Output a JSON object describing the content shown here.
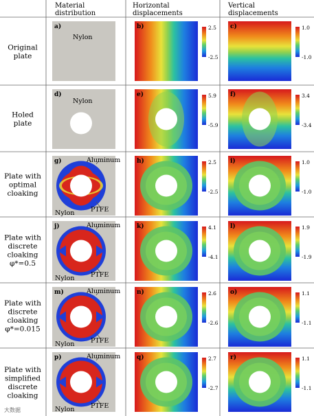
{
  "columns": [
    "Material\ndistribution",
    "Horizontal\ndisplacements",
    "Vertical\ndisplacements"
  ],
  "rows": [
    {
      "label": "Original\nplate",
      "panels": [
        "a)",
        "b)",
        "c)"
      ],
      "materials": [
        "Nylon"
      ],
      "h_ticks": [
        "2.5",
        "-2.5"
      ],
      "v_ticks": [
        "1.0",
        "-1.0"
      ]
    },
    {
      "label": "Holed\nplate",
      "panels": [
        "d)",
        "e)",
        "f)"
      ],
      "materials": [
        "Nylon"
      ],
      "h_ticks": [
        "5.9",
        "-5.9"
      ],
      "v_ticks": [
        "3.4",
        "-3.4"
      ]
    },
    {
      "label": "Plate with\noptimal\ncloaking",
      "panels": [
        "g)",
        "h)",
        "i)"
      ],
      "materials": [
        "Aluminum",
        "PTFE",
        "Nylon"
      ],
      "h_ticks": [
        "2.5",
        "-2.5"
      ],
      "v_ticks": [
        "1.0",
        "-1.0"
      ]
    },
    {
      "label": "Plate with\ndiscrete\ncloaking\nφ*=0.5",
      "panels": [
        "j)",
        "k)",
        "l)"
      ],
      "materials": [
        "Aluminum",
        "PTFE",
        "Nylon"
      ],
      "h_ticks": [
        "4.1",
        "-4.1"
      ],
      "v_ticks": [
        "1.9",
        "-1.9"
      ]
    },
    {
      "label": "Plate with\ndiscrete\ncloaking\nφ*=0.015",
      "panels": [
        "m)",
        "n)",
        "o)"
      ],
      "materials": [
        "Aluminum",
        "PTFE",
        "Nylon"
      ],
      "h_ticks": [
        "2.6",
        "-2.6"
      ],
      "v_ticks": [
        "1.1",
        "-1.1"
      ]
    },
    {
      "label": "Plate with\nsimplified\ndiscrete\ncloaking",
      "panels": [
        "p)",
        "q)",
        "r)"
      ],
      "materials": [
        "Aluminum",
        "PTFE",
        "Nylon"
      ],
      "h_ticks": [
        "2.7",
        "-2.7"
      ],
      "v_ticks": [
        "1.1",
        "-1.1"
      ]
    }
  ],
  "watermark": "大数据",
  "colors": {
    "nylon": "#c9c7c1",
    "aluminum": "#1f3fd8",
    "ptfe": "#d8261c",
    "line": "#555555"
  }
}
